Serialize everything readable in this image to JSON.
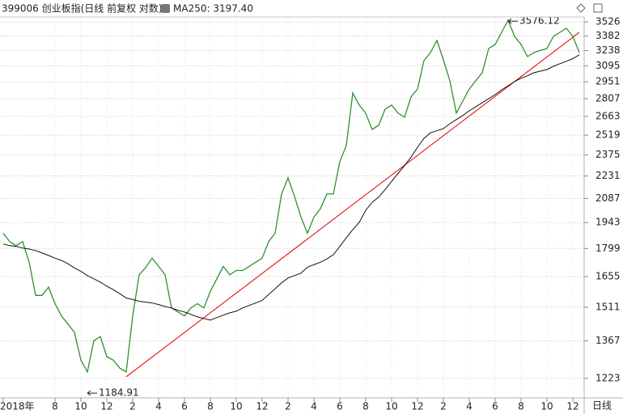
{
  "chart_data": {
    "type": "line",
    "title": "399006 创业板指(日线 前复权 对数)",
    "period_label": "日线",
    "log_scale": true,
    "grid": true,
    "categories": [
      "2018年",
      null,
      null,
      null,
      null,
      null,
      null,
      null,
      "8",
      null,
      null,
      null,
      "10",
      null,
      null,
      null,
      "12",
      null,
      null,
      null,
      "2",
      null,
      null,
      null,
      "4",
      null,
      null,
      null,
      "6",
      null,
      null,
      null,
      "8",
      null,
      null,
      null,
      "10",
      null,
      null,
      null,
      "12",
      null,
      null,
      null,
      "2",
      null,
      null,
      null,
      "4",
      null,
      null,
      null,
      "6",
      null,
      null,
      null,
      "8",
      null,
      null,
      null,
      "10",
      null,
      null,
      null,
      "12",
      null,
      null,
      null,
      "2",
      null,
      null,
      null,
      "4",
      null,
      null,
      null,
      "6",
      null,
      null,
      null,
      "8",
      null,
      null,
      null,
      "10",
      null,
      null,
      null,
      "12",
      null
    ],
    "series": [
      {
        "color": "#2f8f2f",
        "values": [
          1882,
          1836,
          1814,
          1836,
          1727,
          1565,
          1565,
          1604,
          1527,
          1472,
          1437,
          1402,
          1291,
          1247,
          1368,
          1385,
          1305,
          1291,
          1261,
          1247,
          1472,
          1664,
          1700,
          1748,
          1706,
          1664,
          1508,
          1490,
          1472,
          1508,
          1527,
          1508,
          1584,
          1644,
          1706,
          1664,
          1685,
          1685,
          1706,
          1727,
          1748,
          1836,
          1882,
          2115,
          2219,
          2100,
          1975,
          1882,
          1975,
          2025,
          2115,
          2115,
          2328,
          2442,
          2855,
          2754,
          2689,
          2562,
          2594,
          2721,
          2754,
          2689,
          2657,
          2821,
          2889,
          3143,
          3219,
          3337,
          3150,
          2960,
          2689,
          2787,
          2889,
          2960,
          3032,
          3258,
          3297,
          3418,
          3544,
          3378,
          3297,
          3181,
          3219,
          3240,
          3258,
          3378,
          3418,
          3460,
          3378,
          3219
        ]
      },
      {
        "name": "MA250: 3197.40",
        "color": "#111111",
        "values": [
          1823,
          1814,
          1810,
          1801,
          1796,
          1788,
          1775,
          1762,
          1748,
          1736,
          1719,
          1698,
          1681,
          1660,
          1644,
          1628,
          1608,
          1592,
          1573,
          1553,
          1546,
          1538,
          1534,
          1530,
          1523,
          1514,
          1508,
          1497,
          1490,
          1479,
          1468,
          1461,
          1454,
          1465,
          1476,
          1486,
          1493,
          1508,
          1519,
          1530,
          1542,
          1569,
          1596,
          1624,
          1648,
          1660,
          1672,
          1702,
          1714,
          1727,
          1744,
          1766,
          1810,
          1857,
          1902,
          1944,
          2015,
          2064,
          2095,
          2143,
          2196,
          2248,
          2301,
          2360,
          2430,
          2495,
          2537,
          2552,
          2568,
          2606,
          2638,
          2670,
          2708,
          2740,
          2773,
          2808,
          2841,
          2882,
          2917,
          2953,
          2983,
          3005,
          3032,
          3046,
          3061,
          3090,
          3114,
          3137,
          3162,
          3197.4
        ]
      }
    ],
    "trend_line": {
      "color": "#e00000",
      "start_index": 19,
      "start": 1229,
      "end_index": 89,
      "end": 3418
    },
    "annotations": [
      {
        "value": 1184.91,
        "index": 13
      },
      {
        "value": 3576.12,
        "index": 78
      }
    ],
    "ylim": [
      1160,
      3763
    ],
    "yticks": [
      1223,
      1367,
      1511,
      1655,
      1799,
      1943,
      2087,
      2231,
      2375,
      2519,
      2663,
      2807,
      2951,
      3095,
      3238,
      3382,
      3526
    ]
  }
}
